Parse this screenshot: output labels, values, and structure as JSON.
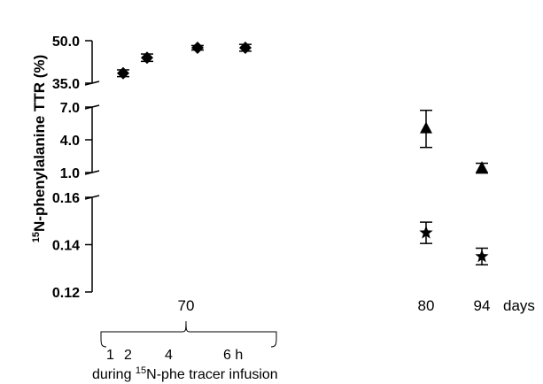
{
  "chart_data": {
    "type": "scatter",
    "ylabel_sup": "15",
    "ylabel": "N-phenylalanine TTR (%)",
    "x_ticks": [
      "70",
      "80",
      "94"
    ],
    "x_unit": "days",
    "y_segments": [
      {
        "ticks": [
          "50.0",
          "35.0"
        ]
      },
      {
        "ticks": [
          "7.0",
          "4.0",
          "1.0"
        ]
      },
      {
        "ticks": [
          "0.16",
          "0.14",
          "0.12"
        ]
      }
    ],
    "annotation": {
      "hour_ticks": [
        "1",
        "2",
        "4",
        "6 h"
      ],
      "caption_pre": "during ",
      "caption_sup": "15",
      "caption_post": "N-phe tracer infusion"
    },
    "series": [
      {
        "marker": "diamond",
        "points": [
          {
            "day": 70,
            "hour": 1,
            "y": 38.5,
            "err": 1.2
          },
          {
            "day": 70,
            "hour": 2,
            "y": 44.0,
            "err": 1.3
          },
          {
            "day": 70,
            "hour": 4,
            "y": 47.5,
            "err": 0.8
          },
          {
            "day": 70,
            "hour": 6,
            "y": 47.5,
            "err": 1.2
          }
        ]
      },
      {
        "marker": "triangle",
        "points": [
          {
            "day": 80,
            "y": 5.0,
            "err": 1.7
          },
          {
            "day": 94,
            "y": 1.4,
            "err": 0.45
          }
        ]
      },
      {
        "marker": "star",
        "points": [
          {
            "day": 80,
            "y": 0.145,
            "err": 0.0045
          },
          {
            "day": 94,
            "y": 0.135,
            "err": 0.0035
          }
        ]
      }
    ]
  }
}
